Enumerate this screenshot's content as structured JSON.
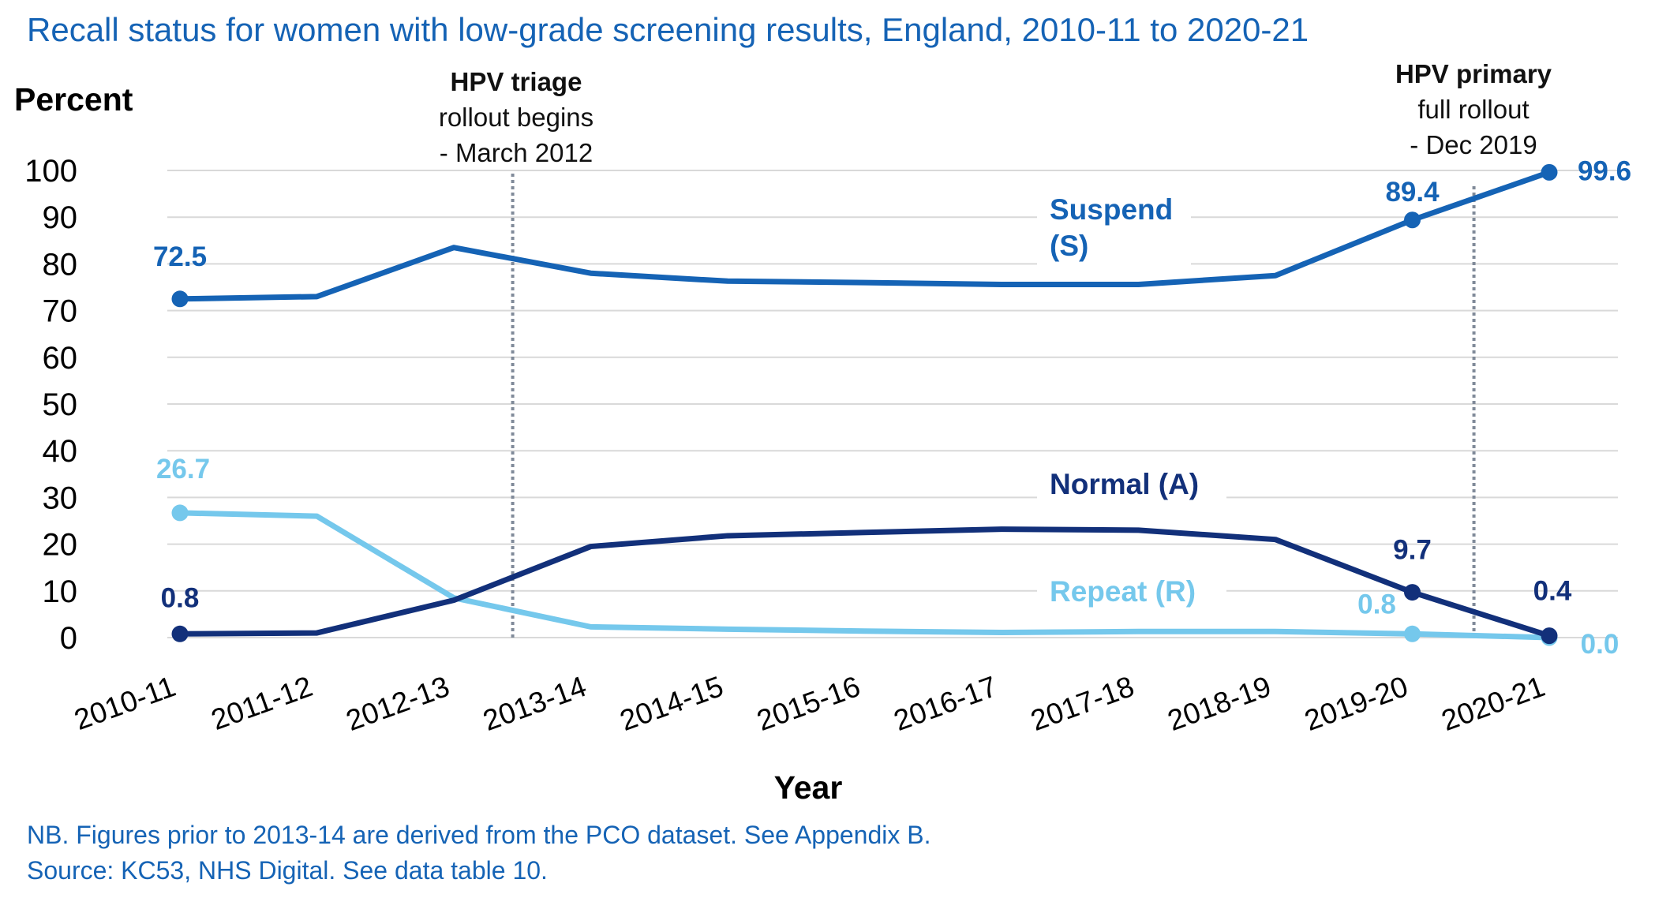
{
  "title": "Recall status for women with low-grade screening results, England, 2010-11 to 2020-21",
  "notes": [
    "NB. Figures prior to 2013-14 are derived from the PCO dataset. See Appendix B.",
    "Source: KC53, NHS Digital. See data table 10."
  ],
  "colors": {
    "suspend": "#1563b5",
    "normal": "#12307a",
    "repeat": "#75c8ec",
    "gridline": "#d9d9d9",
    "marker_line": "#808a99",
    "text": "#000000"
  },
  "chart_data": {
    "type": "line",
    "title": "Recall status for women with low-grade screening results, England, 2010-11 to 2020-21",
    "xlabel": "Year",
    "ylabel": "Percent",
    "ylim": [
      0,
      100
    ],
    "yticks": [
      "0",
      "10",
      "20",
      "30",
      "40",
      "50",
      "60",
      "70",
      "80",
      "90",
      "100"
    ],
    "grid": true,
    "categories": [
      "2010-11",
      "2011-12",
      "2012-13",
      "2013-14",
      "2014-15",
      "2015-16",
      "2016-17",
      "2017-18",
      "2018-19",
      "2019-20",
      "2020-21"
    ],
    "series": [
      {
        "name": "Suspend (S)",
        "name_lines": [
          "Suspend",
          "(S)"
        ],
        "color": "#1563b5",
        "values": [
          72.5,
          73.0,
          83.5,
          78.0,
          76.3,
          76.0,
          75.6,
          75.6,
          77.5,
          89.4,
          99.6
        ],
        "labels": [
          {
            "index": 0,
            "text": "72.5"
          },
          {
            "index": 9,
            "text": "89.4"
          },
          {
            "index": 10,
            "text": "99.6"
          }
        ]
      },
      {
        "name": "Normal (A)",
        "name_lines": [
          "Normal (A)"
        ],
        "color": "#12307a",
        "values": [
          0.8,
          1.0,
          8.0,
          19.5,
          21.8,
          22.5,
          23.2,
          23.0,
          21.0,
          9.7,
          0.4
        ],
        "labels": [
          {
            "index": 0,
            "text": "0.8"
          },
          {
            "index": 9,
            "text": "9.7"
          },
          {
            "index": 10,
            "text": "0.4"
          }
        ]
      },
      {
        "name": "Repeat (R)",
        "name_lines": [
          "Repeat (R)"
        ],
        "color": "#75c8ec",
        "values": [
          26.7,
          26.0,
          8.5,
          2.3,
          1.8,
          1.4,
          1.1,
          1.3,
          1.3,
          0.8,
          0.0
        ],
        "labels": [
          {
            "index": 0,
            "text": "26.7"
          },
          {
            "index": 9,
            "text": "0.8"
          },
          {
            "index": 10,
            "text": "0.0"
          }
        ]
      }
    ],
    "annotations": [
      {
        "position_between": [
          "2012-13",
          "2013-14"
        ],
        "lines": [
          "HPV triage",
          "rollout begins",
          " - March 2012"
        ],
        "bold_first": true
      },
      {
        "position_between": [
          "2019-20",
          "2020-21"
        ],
        "lines": [
          "HPV primary",
          "full rollout",
          " - Dec 2019"
        ],
        "bold_first": true
      }
    ]
  }
}
